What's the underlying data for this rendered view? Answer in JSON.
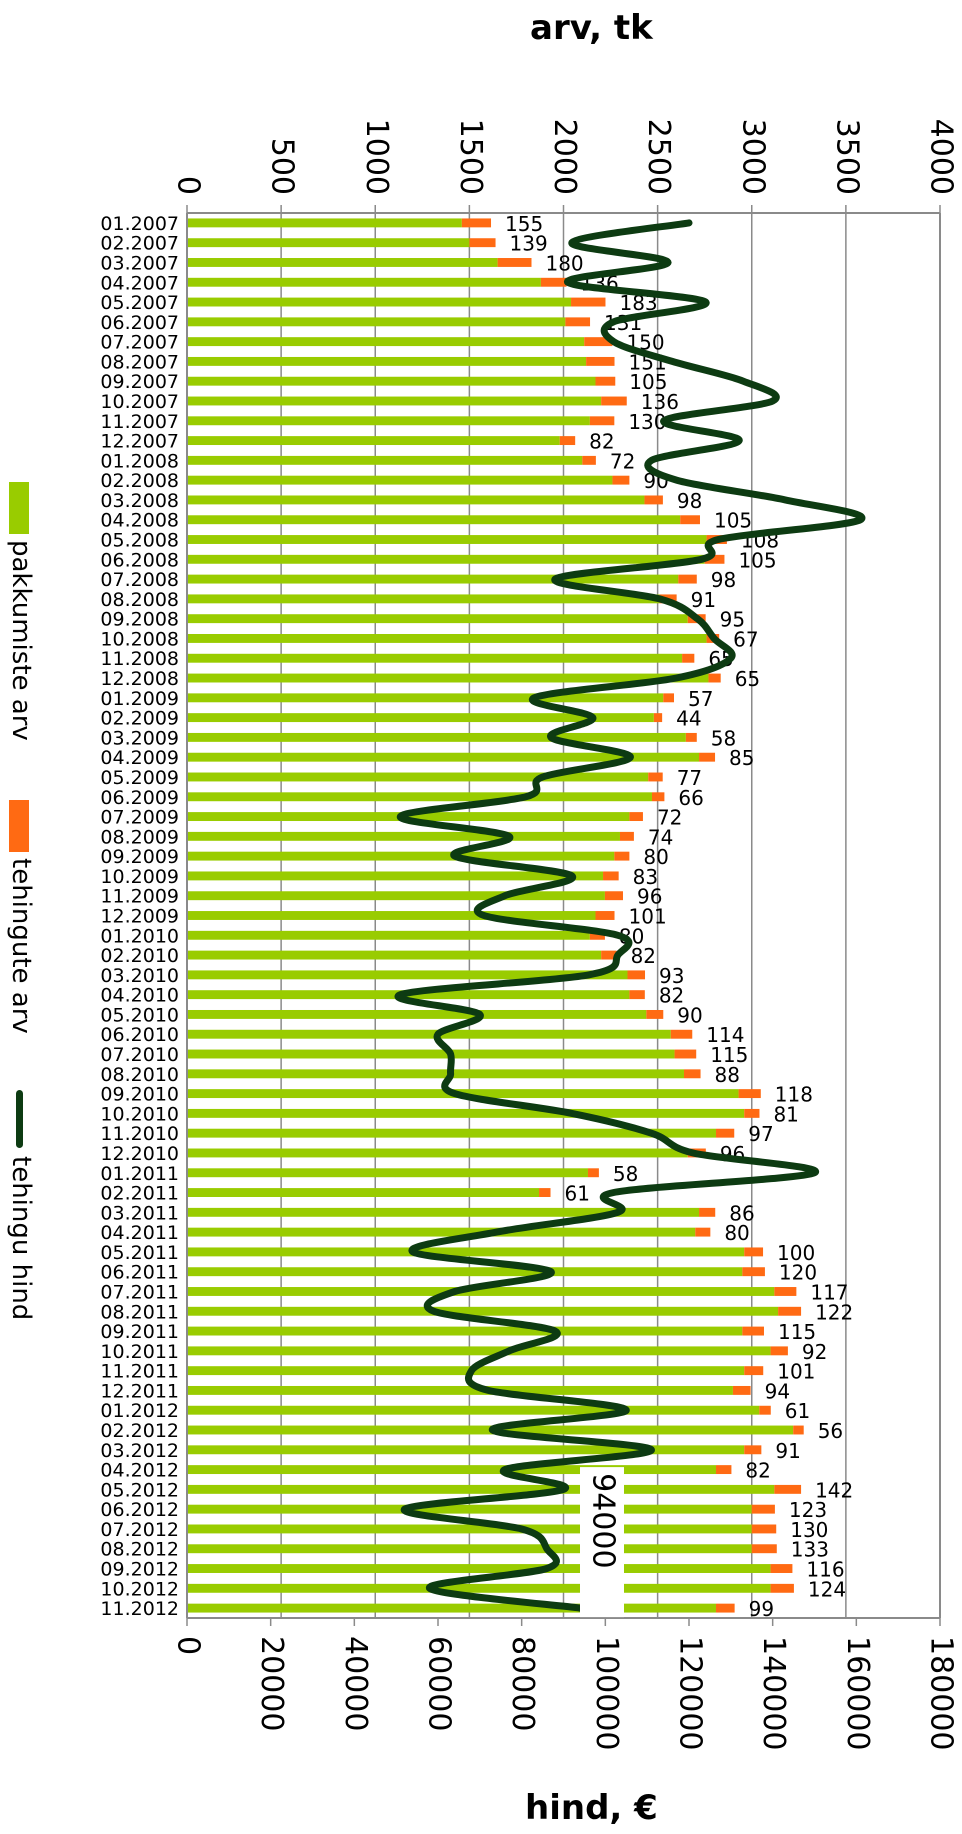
{
  "chart_data": {
    "type": "bar",
    "orientation": "horizontal-rotated",
    "top_axis_title": "arv, tk",
    "bottom_axis_title": "hind, €",
    "top_axis": {
      "min": 0,
      "max": 4000,
      "step": 500,
      "ticks": [
        "0",
        "500",
        "1000",
        "1500",
        "2000",
        "2500",
        "3000",
        "3500",
        "4000"
      ]
    },
    "bottom_axis": {
      "min": 0,
      "max": 180000,
      "step": 20000,
      "ticks": [
        "0",
        "20000",
        "40000",
        "60000",
        "80000",
        "100000",
        "120000",
        "140000",
        "160000",
        "180000"
      ]
    },
    "grid": true,
    "legend_position": "left",
    "colors": {
      "pakkumiste": "#99cc00",
      "tehingute": "#ff6a13",
      "hind": "#0d3b12",
      "grid": "#8a8a8a"
    },
    "categories": [
      "01.2007",
      "02.2007",
      "03.2007",
      "04.2007",
      "05.2007",
      "06.2007",
      "07.2007",
      "08.2007",
      "09.2007",
      "10.2007",
      "11.2007",
      "12.2007",
      "01.2008",
      "02.2008",
      "03.2008",
      "04.2008",
      "05.2008",
      "06.2008",
      "07.2008",
      "08.2008",
      "09.2008",
      "10.2008",
      "11.2008",
      "12.2008",
      "01.2009",
      "02.2009",
      "03.2009",
      "04.2009",
      "05.2009",
      "06.2009",
      "07.2009",
      "08.2009",
      "09.2009",
      "10.2009",
      "11.2009",
      "12.2009",
      "01.2010",
      "02.2010",
      "03.2010",
      "04.2010",
      "05.2010",
      "06.2010",
      "07.2010",
      "08.2010",
      "09.2010",
      "10.2010",
      "11.2010",
      "12.2010",
      "01.2011",
      "02.2011",
      "03.2011",
      "04.2011",
      "05.2011",
      "06.2011",
      "07.2011",
      "08.2011",
      "09.2011",
      "10.2011",
      "11.2011",
      "12.2011",
      "01.2012",
      "02.2012",
      "03.2012",
      "04.2012",
      "05.2012",
      "06.2012",
      "07.2012",
      "08.2012",
      "09.2012",
      "10.2012",
      "11.2012"
    ],
    "series": [
      {
        "name": "pakkumiste arv",
        "kind": "bar",
        "values": [
          1460,
          1500,
          1650,
          1880,
          2040,
          2010,
          2110,
          2120,
          2170,
          2200,
          2140,
          1980,
          2100,
          2260,
          2430,
          2620,
          2760,
          2750,
          2610,
          2510,
          2660,
          2760,
          2630,
          2770,
          2530,
          2480,
          2650,
          2720,
          2450,
          2470,
          2350,
          2300,
          2270,
          2210,
          2220,
          2170,
          2140,
          2200,
          2340,
          2350,
          2440,
          2570,
          2590,
          2640,
          2930,
          2960,
          2810,
          2660,
          2130,
          1870,
          2720,
          2700,
          2960,
          2950,
          3120,
          3140,
          2950,
          3100,
          2960,
          2900,
          3040,
          3220,
          2960,
          2810,
          3120,
          3000,
          3000,
          3000,
          3100,
          3100,
          2810
        ]
      },
      {
        "name": "tehingute arv",
        "kind": "bar",
        "values": [
          155,
          139,
          180,
          136,
          183,
          131,
          150,
          151,
          105,
          136,
          130,
          82,
          72,
          90,
          98,
          105,
          108,
          105,
          98,
          91,
          95,
          67,
          65,
          65,
          57,
          44,
          58,
          85,
          77,
          66,
          72,
          74,
          80,
          83,
          96,
          101,
          80,
          82,
          93,
          82,
          90,
          114,
          115,
          88,
          118,
          81,
          97,
          96,
          58,
          61,
          86,
          80,
          100,
          120,
          117,
          122,
          115,
          92,
          101,
          94,
          61,
          56,
          91,
          82,
          142,
          123,
          130,
          133,
          116,
          124,
          99
        ]
      },
      {
        "name": "tehingu hind",
        "kind": "line",
        "values": [
          120000,
          92000,
          115000,
          91000,
          124000,
          102000,
          102000,
          116000,
          133000,
          140000,
          114000,
          132000,
          111000,
          117000,
          143000,
          161000,
          127000,
          123000,
          88000,
          113000,
          122000,
          126000,
          130000,
          117000,
          83000,
          97000,
          87000,
          106000,
          85000,
          81000,
          51000,
          77000,
          64000,
          92000,
          76000,
          71000,
          103000,
          103000,
          96000,
          51000,
          70000,
          60000,
          63000,
          63000,
          64000,
          92000,
          111000,
          121000,
          150000,
          102000,
          103000,
          74000,
          54000,
          87000,
          64000,
          59000,
          88000,
          77000,
          68000,
          72000,
          105000,
          73000,
          111000,
          76000,
          90000,
          52000,
          80000,
          86000,
          86000,
          58000,
          94000
        ]
      }
    ],
    "line_point_label": {
      "category": "11.2012",
      "text": "94000"
    }
  },
  "legend": {
    "pakkumiste": "pakkumiste arv",
    "tehingute": "tehingute arv",
    "hind": "tehingu hind"
  }
}
